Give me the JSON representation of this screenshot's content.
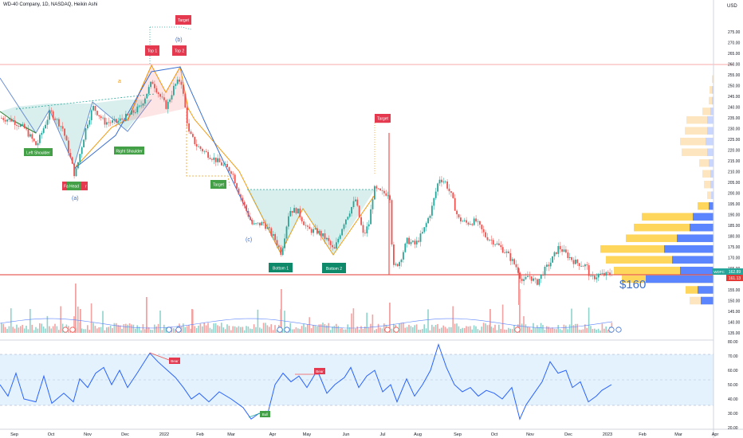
{
  "header": {
    "title": "WD-40 Company, 1D, NASDAQ, Heikin Ashi",
    "currency": "USD"
  },
  "price_axis": {
    "labels": [
      "275.00",
      "270.00",
      "265.00",
      "260.00",
      "255.00",
      "250.00",
      "245.00",
      "240.00",
      "235.00",
      "230.00",
      "225.00",
      "220.00",
      "215.00",
      "210.00",
      "205.00",
      "200.00",
      "195.00",
      "190.00",
      "185.00",
      "180.00",
      "175.00",
      "170.00",
      "165.00",
      "160.00",
      "155.00",
      "150.00",
      "145.00",
      "140.00",
      "135.00"
    ],
    "values": [
      275,
      270,
      265,
      260,
      255,
      250,
      245,
      240,
      235,
      230,
      225,
      220,
      215,
      210,
      205,
      200,
      195,
      190,
      185,
      180,
      175,
      170,
      165,
      160,
      155,
      150,
      145,
      140,
      135
    ],
    "ticker_tag": "WDFC",
    "last_price": "162.89",
    "support_price": "161.13"
  },
  "rsi_axis": {
    "labels": [
      "80.00",
      "70.00",
      "60.00",
      "50.00",
      "40.00",
      "30.00",
      "20.00"
    ],
    "values": [
      80,
      70,
      60,
      50,
      40,
      30,
      20
    ]
  },
  "time_axis": {
    "labels": [
      "Sep",
      "Oct",
      "Nov",
      "Dec",
      "2022",
      "Feb",
      "Mar",
      "Apr",
      "May",
      "Jun",
      "Jul",
      "Aug",
      "Sep",
      "Oct",
      "Nov",
      "Dec",
      "2023",
      "Feb",
      "Mar",
      "Apr"
    ]
  },
  "annotations": {
    "left_shoulder": "Left Shoulder",
    "head": "Head",
    "fake_head": "Fa",
    "fake_head_tail": "r",
    "right_shoulder": "Right Shoulder",
    "top1": "Top 1",
    "top2": "Top 2",
    "target_top": "Target",
    "target_mid": "Target",
    "target_green": "Target",
    "bottom1": "Bottom 1",
    "bottom2": "Bottom 2",
    "wave_a": "a",
    "wave_a2": "(a)",
    "wave_b": "(b)",
    "wave_c": "(c)",
    "price_note": "$160",
    "bear1": "Bear",
    "bear2": "Bear",
    "bull": "Bull"
  },
  "colors": {
    "up": "#26a69a",
    "down": "#ef5350",
    "support": "#e53935",
    "rsi_line": "#2962ff",
    "rsi_band": "#e3f2fd",
    "green_tag": "#43a047",
    "red_tag": "#e53950",
    "teal_tag": "#0e8a6b",
    "vp_blue": "#5b84ff",
    "vp_yellow": "#ffd65c",
    "vp_light": "#fde6bf"
  }
}
